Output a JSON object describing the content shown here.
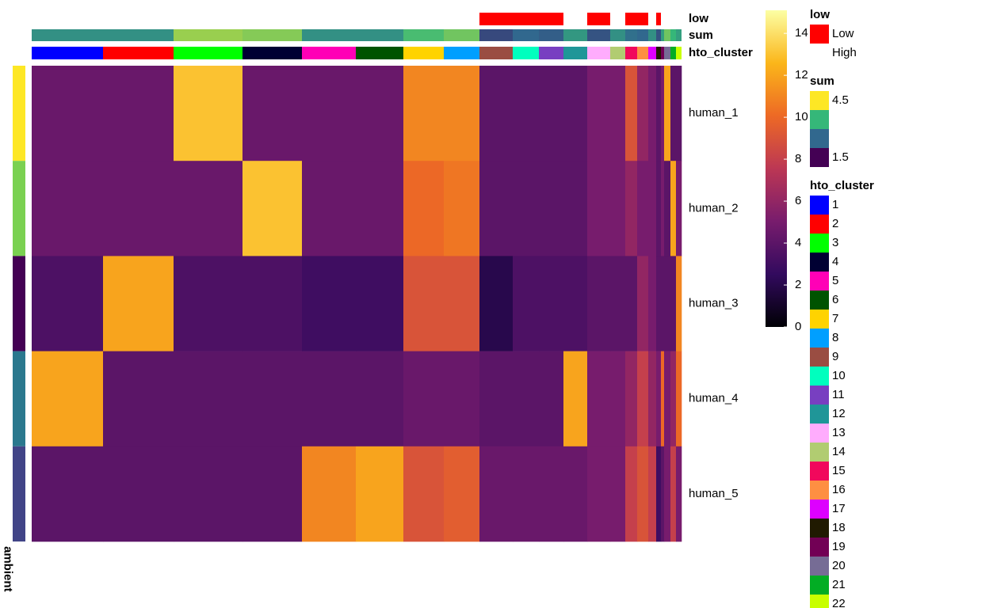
{
  "chart_data": {
    "type": "heatmap",
    "rows": [
      "human_1",
      "human_2",
      "human_3",
      "human_4",
      "human_5"
    ],
    "row_annotation": {
      "title": "ambient",
      "colors": [
        "#fde725",
        "#7ad151",
        "#440154",
        "#2a788e",
        "#414487"
      ]
    },
    "columns": [
      "1",
      "2",
      "3",
      "4",
      "5",
      "6",
      "7",
      "8",
      "9",
      "10",
      "11",
      "12",
      "13",
      "14",
      "15",
      "16",
      "17",
      "18",
      "19",
      "20",
      "21",
      "22"
    ],
    "column_colors": [
      "#0000ff",
      "#ff0000",
      "#00ff00",
      "#000033",
      "#ff00b6",
      "#005300",
      "#ffd300",
      "#009fff",
      "#9a4d42",
      "#00ffbe",
      "#783fc1",
      "#1f9698",
      "#ffacfd",
      "#b1cc71",
      "#f1085c",
      "#fe8f42",
      "#dd00ff",
      "#201a01",
      "#720055",
      "#766c95",
      "#02ad24",
      "#c8ff00"
    ],
    "cells": [
      90,
      89,
      87,
      75,
      68,
      60,
      51,
      45,
      42,
      33,
      31,
      30,
      29,
      19,
      15,
      14,
      10,
      6,
      4,
      8,
      7,
      7
    ],
    "values": [
      [
        4.5,
        4.5,
        13,
        4.5,
        4.5,
        4.5,
        11,
        11,
        4,
        4,
        4,
        4,
        5,
        5,
        9,
        6,
        5,
        4,
        5,
        12,
        4,
        4
      ],
      [
        4.5,
        4.5,
        4.5,
        13,
        4.5,
        4.5,
        10,
        10.5,
        4,
        4,
        4,
        4,
        5,
        5,
        6,
        5,
        5,
        4,
        5,
        4,
        12,
        5
      ],
      [
        3.5,
        12,
        3.5,
        3.5,
        3,
        3,
        9,
        9,
        2,
        3.5,
        3.5,
        3.5,
        4,
        4,
        4,
        6,
        5,
        4,
        4,
        4,
        4,
        11
      ],
      [
        12,
        4,
        4,
        4,
        4,
        4,
        4.5,
        4.5,
        4,
        4,
        4,
        12,
        5,
        5,
        6,
        8,
        6,
        5,
        10,
        5,
        6,
        10
      ],
      [
        4,
        4,
        4,
        4,
        11,
        12,
        9,
        9.5,
        4.5,
        4.5,
        4.5,
        4.5,
        5,
        5,
        8,
        9,
        8,
        3,
        4,
        5,
        8,
        5
      ]
    ],
    "colorbar": {
      "lim": [
        0,
        15.1
      ],
      "ticks": [
        0,
        2,
        4,
        6,
        8,
        10,
        12,
        14
      ],
      "colors": [
        "#000004",
        "#320a5e",
        "#781c6d",
        "#bc3754",
        "#ed6925",
        "#fbb61a",
        "#fcffa4"
      ]
    },
    "low": {
      "title": "low",
      "levels": [
        "Low",
        "High"
      ],
      "colors": [
        "#ff0000",
        "#ffffff"
      ],
      "values": [
        "High",
        "High",
        "High",
        "High",
        "High",
        "High",
        "High",
        "High",
        "Low",
        "Low",
        "Low",
        "High",
        "Low",
        "High",
        "Low",
        "Low",
        "High",
        "Low",
        "High",
        "High",
        "High",
        "High"
      ]
    },
    "sum": {
      "title": "sum",
      "lim": [
        1.5,
        4.5
      ],
      "ticks": [
        4.5,
        1.5
      ],
      "colors": [
        "#fde725",
        "#35b779",
        "#31688e",
        "#440154"
      ],
      "values": [
        3.0,
        3.0,
        4.0,
        3.9,
        3.0,
        3.0,
        3.6,
        3.8,
        2.2,
        2.5,
        2.4,
        3.1,
        2.3,
        3.0,
        2.6,
        2.5,
        3.0,
        2.3,
        3.2,
        3.8,
        3.5,
        3.2
      ]
    },
    "cluster_title": "hto_cluster"
  }
}
